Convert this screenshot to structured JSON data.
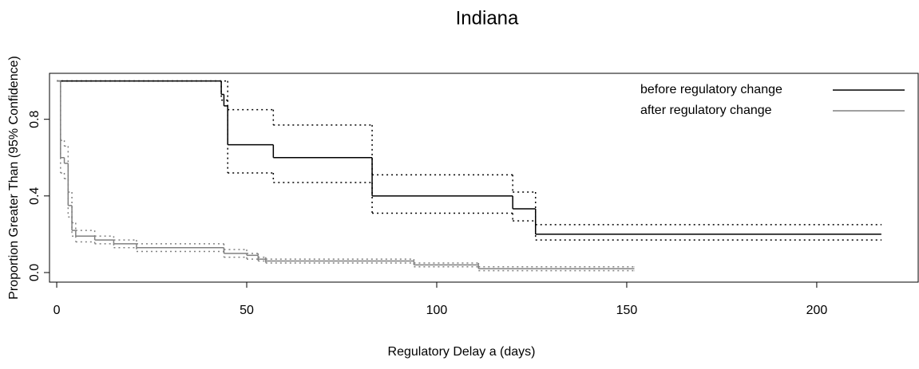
{
  "chart_data": {
    "type": "step",
    "title": "Indiana",
    "xlabel": "Regulatory Delay a (days)",
    "ylabel": "Proportion Greater Than (95% Confidence)",
    "xlim": [
      -1.9,
      226.7
    ],
    "ylim": [
      -0.05,
      1.04
    ],
    "xticks": [
      0,
      50,
      100,
      150,
      200
    ],
    "yticks": [
      {
        "value": 0,
        "label": "0.0"
      },
      {
        "value": 0.4,
        "label": "0.4"
      },
      {
        "value": 0.8,
        "label": "0.8"
      }
    ],
    "legend": "upper right",
    "series": [
      {
        "name": "before regulatory change",
        "color": "#000000",
        "linestyle": "solid",
        "x": [
          0,
          43.3,
          44,
          45,
          57,
          83,
          120,
          126,
          217
        ],
        "values": [
          1,
          0.93,
          0.87,
          0.667,
          0.6,
          0.4,
          0.333,
          0.2,
          0.2
        ]
      },
      {
        "color": "#000000",
        "linestyle": "dotted",
        "x": [
          0,
          45,
          57,
          83,
          120,
          126,
          217
        ],
        "values": [
          1,
          0.85,
          0.77,
          0.51,
          0.42,
          0.25,
          0.25
        ]
      },
      {
        "color": "#000000",
        "linestyle": "dotted",
        "x": [
          0,
          43.3,
          45,
          57,
          83,
          120,
          126,
          217
        ],
        "values": [
          1,
          0.9,
          0.52,
          0.47,
          0.31,
          0.27,
          0.17,
          0.17
        ]
      },
      {
        "name": "after regulatory change",
        "color": "#808080",
        "linestyle": "solid",
        "x": [
          0,
          1,
          2,
          3,
          4,
          5,
          10,
          15,
          21,
          44,
          50,
          53,
          55,
          94,
          111,
          152
        ],
        "values": [
          1,
          0.6,
          0.57,
          0.35,
          0.22,
          0.19,
          0.17,
          0.15,
          0.13,
          0.1,
          0.09,
          0.07,
          0.06,
          0.04,
          0.02,
          0.02
        ]
      },
      {
        "color": "#808080",
        "linestyle": "dotted",
        "x": [
          0,
          1,
          2,
          3,
          4,
          5,
          10,
          15,
          21,
          44,
          50,
          53,
          55,
          94,
          111,
          152
        ],
        "values": [
          1,
          0.69,
          0.66,
          0.42,
          0.26,
          0.22,
          0.19,
          0.17,
          0.15,
          0.12,
          0.1,
          0.08,
          0.07,
          0.05,
          0.03,
          0.03
        ]
      },
      {
        "color": "#808080",
        "linestyle": "dotted",
        "x": [
          0,
          1,
          2,
          3,
          4,
          5,
          10,
          15,
          21,
          44,
          50,
          53,
          55,
          94,
          111,
          152
        ],
        "values": [
          1,
          0.52,
          0.49,
          0.29,
          0.19,
          0.16,
          0.15,
          0.13,
          0.11,
          0.08,
          0.07,
          0.06,
          0.05,
          0.03,
          0.01,
          0.01
        ]
      }
    ]
  }
}
